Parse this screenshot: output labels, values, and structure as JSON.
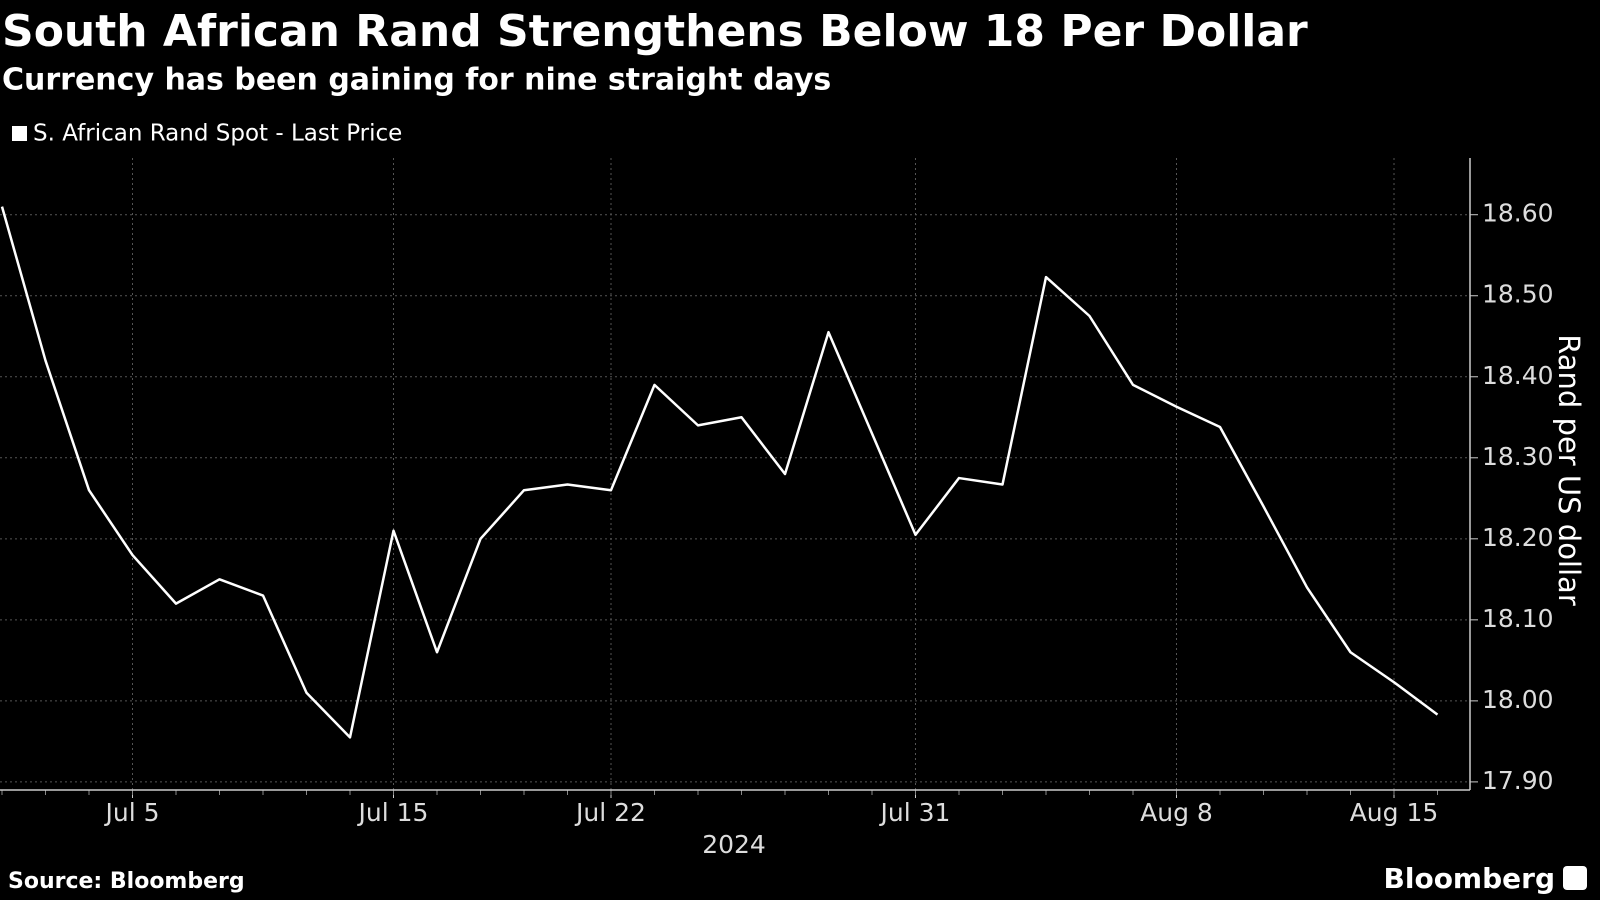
{
  "chart_data": {
    "type": "line",
    "title": "South African Rand Strengthens Below 18 Per Dollar",
    "subtitle": "Currency has been gaining for nine straight days",
    "x_label": "2024",
    "y_label": "Rand per US dollar",
    "source": "Source: Bloomberg",
    "brand": "Bloomberg",
    "grid": true,
    "x": [
      "2024-07-02",
      "2024-07-03",
      "2024-07-04",
      "2024-07-05",
      "2024-07-08",
      "2024-07-09",
      "2024-07-10",
      "2024-07-11",
      "2024-07-12",
      "2024-07-15",
      "2024-07-16",
      "2024-07-17",
      "2024-07-18",
      "2024-07-19",
      "2024-07-22",
      "2024-07-23",
      "2024-07-24",
      "2024-07-25",
      "2024-07-26",
      "2024-07-29",
      "2024-07-30",
      "2024-07-31",
      "2024-08-01",
      "2024-08-02",
      "2024-08-05",
      "2024-08-06",
      "2024-08-07",
      "2024-08-08",
      "2024-08-09",
      "2024-08-12",
      "2024-08-13",
      "2024-08-14",
      "2024-08-15",
      "2024-08-16"
    ],
    "series": [
      {
        "name": "S. African Rand Spot - Last Price",
        "color": "#ffffff",
        "values": [
          18.61,
          18.42,
          18.26,
          18.18,
          18.12,
          18.15,
          18.13,
          18.01,
          17.955,
          18.21,
          18.06,
          18.2,
          18.26,
          18.267,
          18.26,
          18.39,
          18.34,
          18.35,
          18.28,
          18.455,
          18.33,
          18.205,
          18.275,
          18.267,
          18.523,
          18.475,
          18.39,
          18.363,
          18.338,
          18.24,
          18.14,
          18.06,
          18.023,
          17.983
        ]
      }
    ],
    "xticks": [
      {
        "value": "2024-07-05",
        "label": "Jul 5"
      },
      {
        "value": "2024-07-15",
        "label": "Jul 15"
      },
      {
        "value": "2024-07-22",
        "label": "Jul 22"
      },
      {
        "value": "2024-07-31",
        "label": "Jul 31"
      },
      {
        "value": "2024-08-08",
        "label": "Aug 8"
      },
      {
        "value": "2024-08-15",
        "label": "Aug 15"
      }
    ],
    "ylim": [
      17.89,
      18.67
    ],
    "yticks": [
      {
        "value": 17.9,
        "label": "17.90"
      },
      {
        "value": 18.0,
        "label": "18.00"
      },
      {
        "value": 18.1,
        "label": "18.10"
      },
      {
        "value": 18.2,
        "label": "18.20"
      },
      {
        "value": 18.3,
        "label": "18.30"
      },
      {
        "value": 18.4,
        "label": "18.40"
      },
      {
        "value": 18.5,
        "label": "18.50"
      },
      {
        "value": 18.6,
        "label": "18.60"
      }
    ]
  }
}
